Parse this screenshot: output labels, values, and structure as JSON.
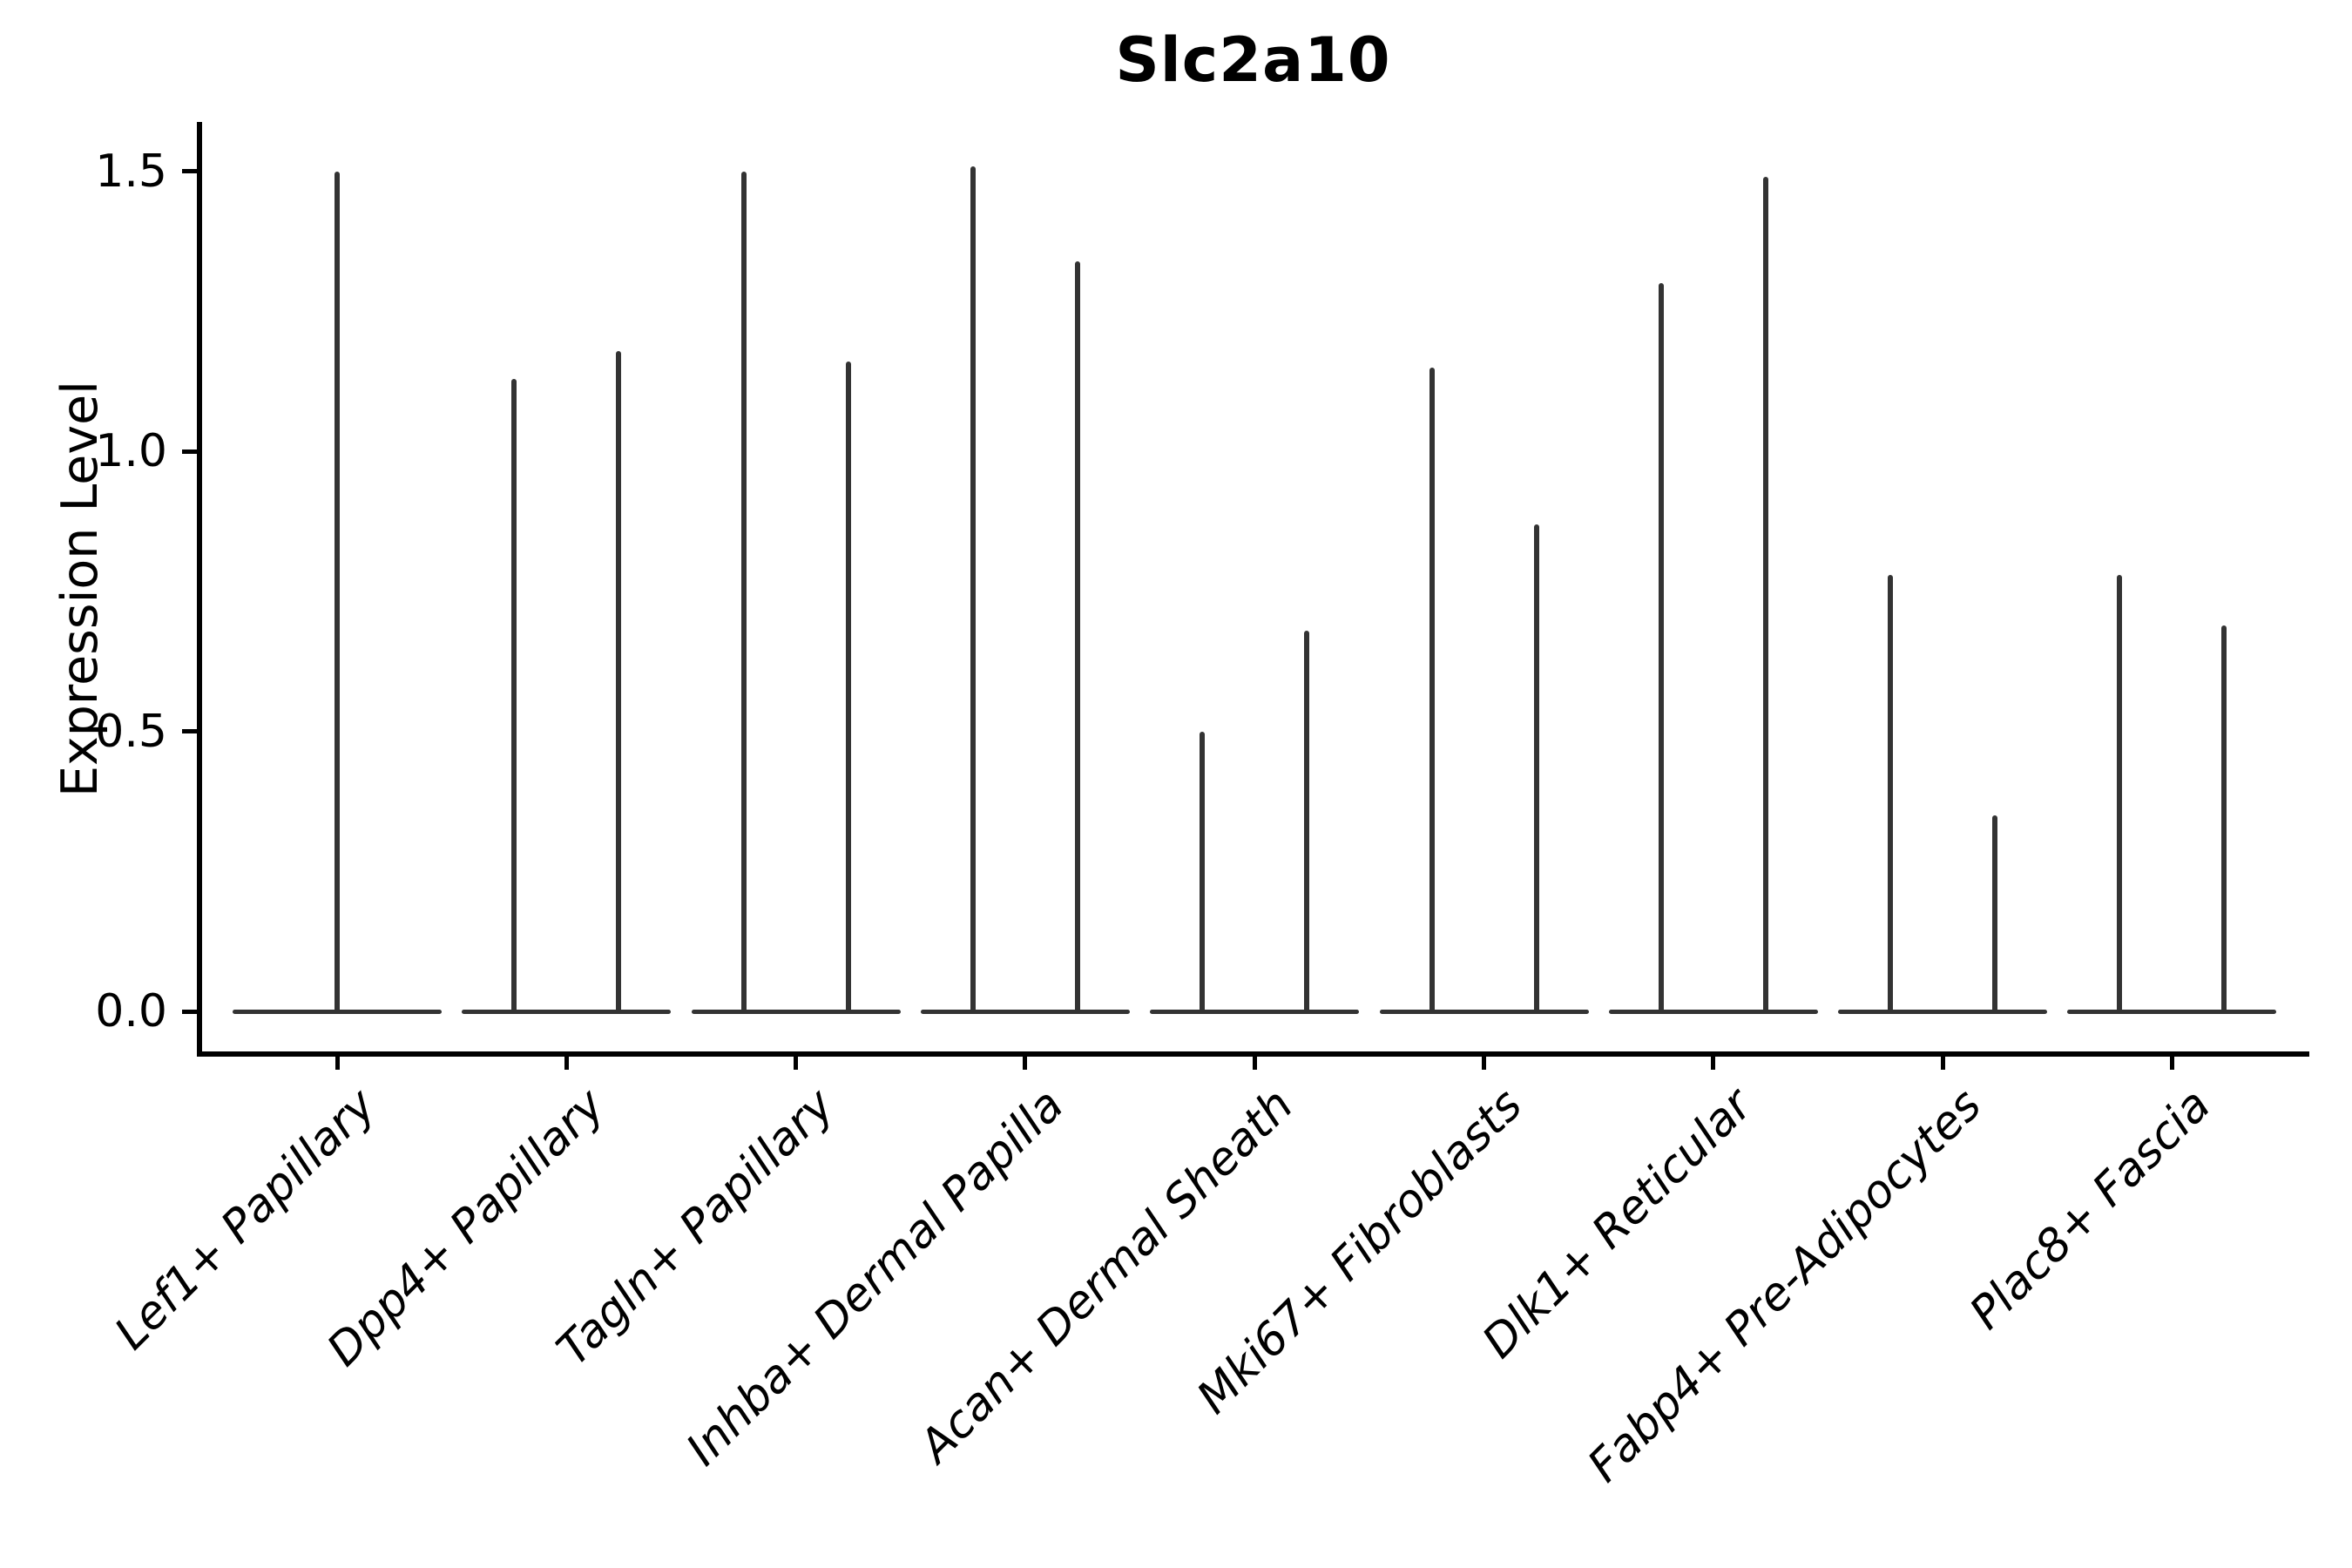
{
  "title": "Slc2a10",
  "axes": {
    "ylabel": "Expression Level",
    "xlabel": ""
  },
  "chart_data": {
    "type": "violin",
    "title": "Slc2a10",
    "xlabel": "",
    "ylabel": "Expression Level",
    "ylim": [
      -0.08,
      1.59
    ],
    "grid": false,
    "legend": null,
    "baseline_value": 0,
    "yticks": [
      {
        "label": "0.0",
        "value": 0.0
      },
      {
        "label": "0.5",
        "value": 0.5
      },
      {
        "label": "1.0",
        "value": 1.0
      },
      {
        "label": "1.5",
        "value": 1.5
      }
    ],
    "categories": [
      "Lef1+ Papillary",
      "Dpp4+ Papillary",
      "Tagln+ Papillary",
      "Inhba+ Dermal Papilla",
      "Acan+ Dermal Sheath",
      "Mki67+ Fibroblasts",
      "Dlk1+ Reticular",
      "Fabp4+ Pre-Adipocytes",
      "Plac8+ Fascia"
    ],
    "violins": [
      {
        "category": "Lef1+ Papillary",
        "spikes": [
          {
            "position": "center",
            "max": 1.5
          }
        ]
      },
      {
        "category": "Dpp4+ Papillary",
        "spikes": [
          {
            "position": "left",
            "max": 1.13
          },
          {
            "position": "right",
            "max": 1.18
          }
        ]
      },
      {
        "category": "Tagln+ Papillary",
        "spikes": [
          {
            "position": "left",
            "max": 1.5
          },
          {
            "position": "right",
            "max": 1.16
          }
        ]
      },
      {
        "category": "Inhba+ Dermal Papilla",
        "spikes": [
          {
            "position": "left",
            "max": 1.51
          },
          {
            "position": "right",
            "max": 1.34
          }
        ]
      },
      {
        "category": "Acan+ Dermal Sheath",
        "spikes": [
          {
            "position": "left",
            "max": 0.5
          },
          {
            "position": "right",
            "max": 0.68
          }
        ]
      },
      {
        "category": "Mki67+ Fibroblasts",
        "spikes": [
          {
            "position": "left",
            "max": 1.15
          },
          {
            "position": "right",
            "max": 0.87
          }
        ]
      },
      {
        "category": "Dlk1+ Reticular",
        "spikes": [
          {
            "position": "left",
            "max": 1.3
          },
          {
            "position": "right",
            "max": 1.49
          }
        ]
      },
      {
        "category": "Fabp4+ Pre-Adipocytes",
        "spikes": [
          {
            "position": "left",
            "max": 0.78
          },
          {
            "position": "right",
            "max": 0.35
          }
        ]
      },
      {
        "category": "Plac8+ Fascia",
        "spikes": [
          {
            "position": "left",
            "max": 0.78
          },
          {
            "position": "right",
            "max": 0.69
          }
        ]
      }
    ],
    "style": {
      "violin_color": "#333333",
      "axis_color": "#000000",
      "background": "#ffffff"
    }
  }
}
